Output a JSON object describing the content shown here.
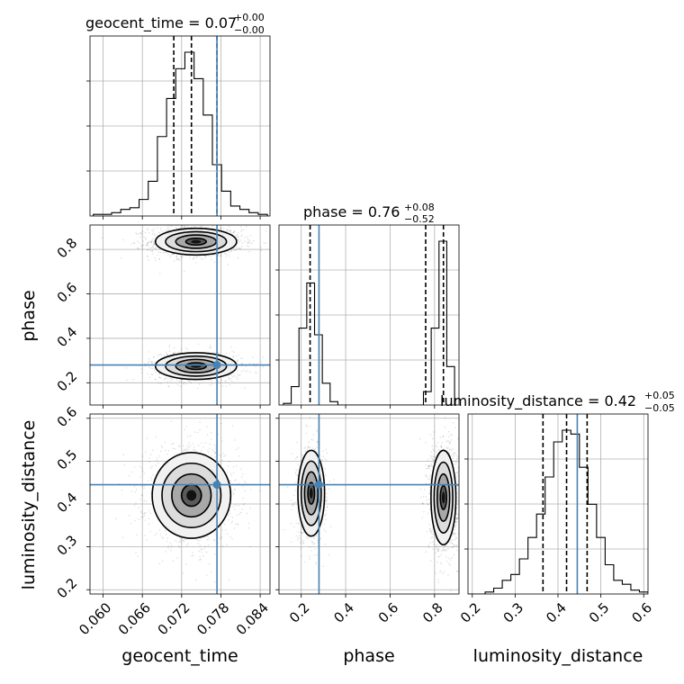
{
  "chart_data": {
    "type": "corner",
    "parameters": [
      "geocent_time",
      "phase",
      "luminosity_distance"
    ],
    "truths": {
      "geocent_time": 0.0774,
      "phase": 0.28,
      "luminosity_distance": 0.445
    },
    "titles": [
      {
        "param": "geocent_time",
        "text": "geocent_time = 0.07",
        "sup": "+0.00",
        "sub": "−0.00"
      },
      {
        "param": "phase",
        "text": "phase = 0.76",
        "sup": "+0.08",
        "sub": "−0.52"
      },
      {
        "param": "luminosity_distance",
        "text": "luminosity_distance = 0.42",
        "sup": "+0.05",
        "sub": "−0.05"
      }
    ],
    "axes": {
      "geocent_time": {
        "range": [
          0.058,
          0.0855
        ],
        "ticks": [
          0.06,
          0.066,
          0.072,
          0.078,
          0.084
        ],
        "ticklabels": [
          "0.060",
          "0.066",
          "0.072",
          "0.078",
          "0.084"
        ],
        "xlabel": "geocent_time"
      },
      "phase": {
        "range": [
          0.1,
          0.91
        ],
        "ticks": [
          0.2,
          0.4,
          0.6,
          0.8
        ],
        "ticklabels": [
          "0.2",
          "0.4",
          "0.6",
          "0.8"
        ],
        "xlabel": "phase",
        "ylabel": "phase"
      },
      "luminosity_distance": {
        "range": [
          0.19,
          0.61
        ],
        "ticks": [
          0.2,
          0.3,
          0.4,
          0.5,
          0.6
        ],
        "ticklabels": [
          "0.2",
          "0.3",
          "0.4",
          "0.5",
          "0.6"
        ],
        "xlabel": "luminosity_distance",
        "ylabel": "luminosity_distance"
      }
    },
    "marginals": {
      "geocent_time": {
        "bin_edges": [
          0.0585,
          0.0599,
          0.0613,
          0.0627,
          0.0641,
          0.0655,
          0.0669,
          0.0683,
          0.0697,
          0.0711,
          0.0725,
          0.0739,
          0.0753,
          0.0767,
          0.0781,
          0.0795,
          0.0809,
          0.0823,
          0.0837,
          0.0851
        ],
        "counts": [
          0.01,
          0.01,
          0.02,
          0.04,
          0.05,
          0.1,
          0.21,
          0.48,
          0.71,
          0.89,
          0.99,
          0.83,
          0.61,
          0.31,
          0.15,
          0.06,
          0.04,
          0.02,
          0.01
        ],
        "quantiles": [
          0.0708,
          0.0735,
          0.0774
        ]
      },
      "phase": {
        "bin_edges": [
          0.12,
          0.155,
          0.19,
          0.225,
          0.26,
          0.295,
          0.33,
          0.365,
          0.4,
          0.435,
          0.47,
          0.505,
          0.54,
          0.575,
          0.61,
          0.645,
          0.68,
          0.715,
          0.75,
          0.785,
          0.82,
          0.855,
          0.89
        ],
        "counts": [
          0.01,
          0.11,
          0.46,
          0.73,
          0.42,
          0.13,
          0.02,
          0.0,
          0.0,
          0.0,
          0.0,
          0.0,
          0.0,
          0.0,
          0.0,
          0.0,
          0.0,
          0.0,
          0.08,
          0.46,
          0.98,
          0.23
        ],
        "quantiles": [
          0.24,
          0.76,
          0.84
        ]
      },
      "luminosity_distance": {
        "bin_edges": [
          0.19,
          0.21,
          0.23,
          0.25,
          0.27,
          0.29,
          0.31,
          0.33,
          0.35,
          0.37,
          0.39,
          0.41,
          0.43,
          0.45,
          0.47,
          0.49,
          0.51,
          0.53,
          0.55,
          0.57,
          0.59,
          0.61
        ],
        "counts": [
          0.0,
          0.0,
          0.01,
          0.03,
          0.07,
          0.1,
          0.18,
          0.29,
          0.41,
          0.6,
          0.78,
          0.84,
          0.82,
          0.65,
          0.46,
          0.29,
          0.15,
          0.07,
          0.05,
          0.02,
          0.01
        ],
        "quantiles": [
          0.365,
          0.42,
          0.468
        ]
      }
    },
    "pairs": [
      {
        "x": "geocent_time",
        "y": "phase",
        "blobs": [
          {
            "cx": 0.0742,
            "cy": 0.835,
            "sx": 0.0031,
            "sy": 0.03,
            "weight": 1.0
          },
          {
            "cx": 0.0742,
            "cy": 0.275,
            "sx": 0.0031,
            "sy": 0.03,
            "weight": 0.6
          }
        ]
      },
      {
        "x": "geocent_time",
        "y": "luminosity_distance",
        "blobs": [
          {
            "cx": 0.0735,
            "cy": 0.42,
            "sx": 0.003,
            "sy": 0.05,
            "weight": 1.0
          }
        ]
      },
      {
        "x": "phase",
        "y": "luminosity_distance",
        "blobs": [
          {
            "cx": 0.245,
            "cy": 0.425,
            "sx": 0.03,
            "sy": 0.05,
            "weight": 0.55
          },
          {
            "cx": 0.84,
            "cy": 0.415,
            "sx": 0.028,
            "sy": 0.055,
            "weight": 1.0
          }
        ]
      }
    ],
    "grid": true
  }
}
